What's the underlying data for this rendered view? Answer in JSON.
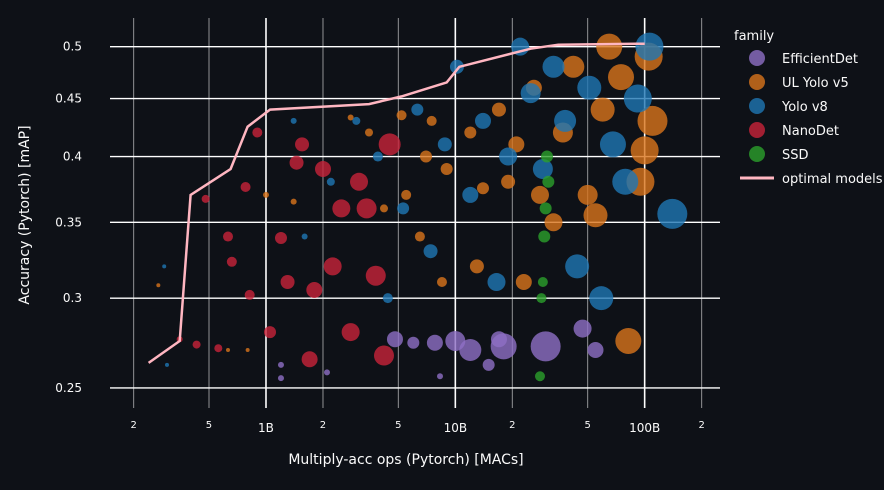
{
  "chart_data": {
    "type": "scatter",
    "xlabel": "Multiply-acc ops (Pytorch) [MACs]",
    "ylabel": "Accuracy (Pytorch) [mAP]",
    "x_scale": "log",
    "y_scale": "log",
    "xlim": [
      150000000,
      250000000000
    ],
    "ylim": [
      0.24,
      0.53
    ],
    "x_major_ticks": [
      {
        "value": 1000000000,
        "label": "1B"
      },
      {
        "value": 10000000000,
        "label": "10B"
      },
      {
        "value": 100000000000,
        "label": "100B"
      }
    ],
    "x_minor_ticks": [
      {
        "value": 200000000,
        "label": "2"
      },
      {
        "value": 500000000,
        "label": "5"
      },
      {
        "value": 2000000000,
        "label": "2"
      },
      {
        "value": 5000000000,
        "label": "5"
      },
      {
        "value": 20000000000,
        "label": "2"
      },
      {
        "value": 50000000000,
        "label": "5"
      },
      {
        "value": 200000000000,
        "label": "2"
      }
    ],
    "y_ticks": [
      {
        "value": 0.25,
        "label": "0.25"
      },
      {
        "value": 0.3,
        "label": "0.3"
      },
      {
        "value": 0.35,
        "label": "0.35"
      },
      {
        "value": 0.4,
        "label": "0.4"
      },
      {
        "value": 0.45,
        "label": "0.45"
      },
      {
        "value": 0.5,
        "label": "0.5"
      }
    ],
    "grid": true,
    "legend": {
      "title": "family",
      "placement": "right"
    },
    "series": [
      {
        "name": "EfficientDet",
        "color": "#8e6fc6",
        "points": [
          {
            "x": 1200000000,
            "y": 0.262,
            "s": 3
          },
          {
            "x": 1200000000,
            "y": 0.255,
            "s": 3
          },
          {
            "x": 2100000000,
            "y": 0.258,
            "s": 3
          },
          {
            "x": 4800000000,
            "y": 0.276,
            "s": 8
          },
          {
            "x": 6000000000,
            "y": 0.274,
            "s": 6
          },
          {
            "x": 7800000000,
            "y": 0.274,
            "s": 8
          },
          {
            "x": 8300000000,
            "y": 0.256,
            "s": 3
          },
          {
            "x": 10000000000,
            "y": 0.275,
            "s": 10
          },
          {
            "x": 12000000000,
            "y": 0.27,
            "s": 11
          },
          {
            "x": 15000000000,
            "y": 0.262,
            "s": 6
          },
          {
            "x": 17000000000,
            "y": 0.276,
            "s": 8
          },
          {
            "x": 18000000000,
            "y": 0.272,
            "s": 13
          },
          {
            "x": 30000000000,
            "y": 0.272,
            "s": 15
          },
          {
            "x": 47000000000,
            "y": 0.282,
            "s": 9
          },
          {
            "x": 55000000000,
            "y": 0.27,
            "s": 8
          }
        ]
      },
      {
        "name": "UL Yolo v5",
        "color": "#d9741c",
        "points": [
          {
            "x": 270000000,
            "y": 0.308,
            "s": 2
          },
          {
            "x": 630000000,
            "y": 0.27,
            "s": 2
          },
          {
            "x": 800000000,
            "y": 0.27,
            "s": 2
          },
          {
            "x": 1000000000,
            "y": 0.37,
            "s": 3
          },
          {
            "x": 1400000000,
            "y": 0.365,
            "s": 3
          },
          {
            "x": 2800000000,
            "y": 0.433,
            "s": 3
          },
          {
            "x": 3500000000,
            "y": 0.42,
            "s": 4
          },
          {
            "x": 4200000000,
            "y": 0.36,
            "s": 4
          },
          {
            "x": 5200000000,
            "y": 0.435,
            "s": 5
          },
          {
            "x": 5500000000,
            "y": 0.37,
            "s": 5
          },
          {
            "x": 6500000000,
            "y": 0.34,
            "s": 5
          },
          {
            "x": 7000000000,
            "y": 0.4,
            "s": 6
          },
          {
            "x": 7500000000,
            "y": 0.43,
            "s": 5
          },
          {
            "x": 8500000000,
            "y": 0.31,
            "s": 5
          },
          {
            "x": 9000000000,
            "y": 0.39,
            "s": 6
          },
          {
            "x": 12000000000,
            "y": 0.42,
            "s": 6
          },
          {
            "x": 13000000000,
            "y": 0.32,
            "s": 7
          },
          {
            "x": 14000000000,
            "y": 0.375,
            "s": 6
          },
          {
            "x": 17000000000,
            "y": 0.44,
            "s": 7
          },
          {
            "x": 19000000000,
            "y": 0.38,
            "s": 7
          },
          {
            "x": 21000000000,
            "y": 0.41,
            "s": 8
          },
          {
            "x": 23000000000,
            "y": 0.31,
            "s": 8
          },
          {
            "x": 26000000000,
            "y": 0.46,
            "s": 8
          },
          {
            "x": 28000000000,
            "y": 0.37,
            "s": 9
          },
          {
            "x": 33000000000,
            "y": 0.35,
            "s": 9
          },
          {
            "x": 37000000000,
            "y": 0.42,
            "s": 10
          },
          {
            "x": 42000000000,
            "y": 0.48,
            "s": 11
          },
          {
            "x": 50000000000,
            "y": 0.37,
            "s": 10
          },
          {
            "x": 55000000000,
            "y": 0.355,
            "s": 12
          },
          {
            "x": 60000000000,
            "y": 0.44,
            "s": 12
          },
          {
            "x": 65000000000,
            "y": 0.5,
            "s": 13
          },
          {
            "x": 75000000000,
            "y": 0.47,
            "s": 13
          },
          {
            "x": 82000000000,
            "y": 0.275,
            "s": 13
          },
          {
            "x": 95000000000,
            "y": 0.38,
            "s": 14
          },
          {
            "x": 100000000000,
            "y": 0.405,
            "s": 14
          },
          {
            "x": 105000000000,
            "y": 0.49,
            "s": 14
          },
          {
            "x": 110000000000,
            "y": 0.43,
            "s": 15
          }
        ]
      },
      {
        "name": "Yolo v8",
        "color": "#1f77b4",
        "points": [
          {
            "x": 290000000,
            "y": 0.32,
            "s": 2
          },
          {
            "x": 300000000,
            "y": 0.262,
            "s": 2
          },
          {
            "x": 1400000000,
            "y": 0.43,
            "s": 3
          },
          {
            "x": 1600000000,
            "y": 0.34,
            "s": 3
          },
          {
            "x": 2200000000,
            "y": 0.38,
            "s": 4
          },
          {
            "x": 3000000000,
            "y": 0.43,
            "s": 4
          },
          {
            "x": 3900000000,
            "y": 0.4,
            "s": 5
          },
          {
            "x": 4400000000,
            "y": 0.3,
            "s": 5
          },
          {
            "x": 5300000000,
            "y": 0.36,
            "s": 6
          },
          {
            "x": 6300000000,
            "y": 0.44,
            "s": 6
          },
          {
            "x": 7400000000,
            "y": 0.33,
            "s": 7
          },
          {
            "x": 8800000000,
            "y": 0.41,
            "s": 7
          },
          {
            "x": 10200000000,
            "y": 0.48,
            "s": 7
          },
          {
            "x": 12000000000,
            "y": 0.37,
            "s": 8
          },
          {
            "x": 14000000000,
            "y": 0.43,
            "s": 8
          },
          {
            "x": 16500000000,
            "y": 0.31,
            "s": 9
          },
          {
            "x": 19000000000,
            "y": 0.4,
            "s": 9
          },
          {
            "x": 22000000000,
            "y": 0.5,
            "s": 9
          },
          {
            "x": 25000000000,
            "y": 0.455,
            "s": 10
          },
          {
            "x": 29000000000,
            "y": 0.39,
            "s": 10
          },
          {
            "x": 33000000000,
            "y": 0.48,
            "s": 11
          },
          {
            "x": 38000000000,
            "y": 0.43,
            "s": 11
          },
          {
            "x": 44000000000,
            "y": 0.32,
            "s": 12
          },
          {
            "x": 51000000000,
            "y": 0.46,
            "s": 12
          },
          {
            "x": 59000000000,
            "y": 0.3,
            "s": 12
          },
          {
            "x": 68000000000,
            "y": 0.41,
            "s": 13
          },
          {
            "x": 79000000000,
            "y": 0.38,
            "s": 13
          },
          {
            "x": 92000000000,
            "y": 0.45,
            "s": 14
          },
          {
            "x": 106000000000,
            "y": 0.5,
            "s": 14
          },
          {
            "x": 140000000000,
            "y": 0.356,
            "s": 15
          }
        ]
      },
      {
        "name": "NanoDet",
        "color": "#c8233a",
        "points": [
          {
            "x": 350000000,
            "y": 0.276,
            "s": 3
          },
          {
            "x": 430000000,
            "y": 0.273,
            "s": 4
          },
          {
            "x": 480000000,
            "y": 0.367,
            "s": 4
          },
          {
            "x": 560000000,
            "y": 0.271,
            "s": 4
          },
          {
            "x": 630000000,
            "y": 0.34,
            "s": 5
          },
          {
            "x": 660000000,
            "y": 0.323,
            "s": 5
          },
          {
            "x": 780000000,
            "y": 0.376,
            "s": 5
          },
          {
            "x": 820000000,
            "y": 0.302,
            "s": 5
          },
          {
            "x": 900000000,
            "y": 0.42,
            "s": 5
          },
          {
            "x": 1050000000,
            "y": 0.28,
            "s": 6
          },
          {
            "x": 1200000000,
            "y": 0.339,
            "s": 6
          },
          {
            "x": 1300000000,
            "y": 0.31,
            "s": 7
          },
          {
            "x": 1450000000,
            "y": 0.395,
            "s": 7
          },
          {
            "x": 1550000000,
            "y": 0.41,
            "s": 7
          },
          {
            "x": 1700000000,
            "y": 0.265,
            "s": 8
          },
          {
            "x": 1800000000,
            "y": 0.305,
            "s": 8
          },
          {
            "x": 2000000000,
            "y": 0.39,
            "s": 8
          },
          {
            "x": 2250000000,
            "y": 0.32,
            "s": 9
          },
          {
            "x": 2500000000,
            "y": 0.36,
            "s": 9
          },
          {
            "x": 2800000000,
            "y": 0.28,
            "s": 9
          },
          {
            "x": 3100000000,
            "y": 0.38,
            "s": 9
          },
          {
            "x": 3400000000,
            "y": 0.36,
            "s": 10
          },
          {
            "x": 3800000000,
            "y": 0.314,
            "s": 10
          },
          {
            "x": 4200000000,
            "y": 0.267,
            "s": 10
          },
          {
            "x": 4500000000,
            "y": 0.41,
            "s": 11
          }
        ]
      },
      {
        "name": "SSD",
        "color": "#2ca02c",
        "points": [
          {
            "x": 28000000000,
            "y": 0.256,
            "s": 5
          },
          {
            "x": 28500000000,
            "y": 0.3,
            "s": 5
          },
          {
            "x": 29000000000,
            "y": 0.31,
            "s": 5
          },
          {
            "x": 29500000000,
            "y": 0.34,
            "s": 6
          },
          {
            "x": 30000000000,
            "y": 0.36,
            "s": 6
          },
          {
            "x": 30500000000,
            "y": 0.4,
            "s": 6
          },
          {
            "x": 31000000000,
            "y": 0.38,
            "s": 6
          }
        ]
      }
    ],
    "optimal_models": {
      "name": "optimal models",
      "color": "#ffb6c1",
      "points": [
        {
          "x": 240000000,
          "y": 0.263
        },
        {
          "x": 350000000,
          "y": 0.275
        },
        {
          "x": 400000000,
          "y": 0.37
        },
        {
          "x": 650000000,
          "y": 0.39
        },
        {
          "x": 800000000,
          "y": 0.425
        },
        {
          "x": 1050000000,
          "y": 0.44
        },
        {
          "x": 3500000000,
          "y": 0.445
        },
        {
          "x": 5200000000,
          "y": 0.452
        },
        {
          "x": 9000000000,
          "y": 0.465
        },
        {
          "x": 10500000000,
          "y": 0.48
        },
        {
          "x": 25000000000,
          "y": 0.498
        },
        {
          "x": 35000000000,
          "y": 0.502
        },
        {
          "x": 100000000000,
          "y": 0.503
        }
      ]
    }
  }
}
